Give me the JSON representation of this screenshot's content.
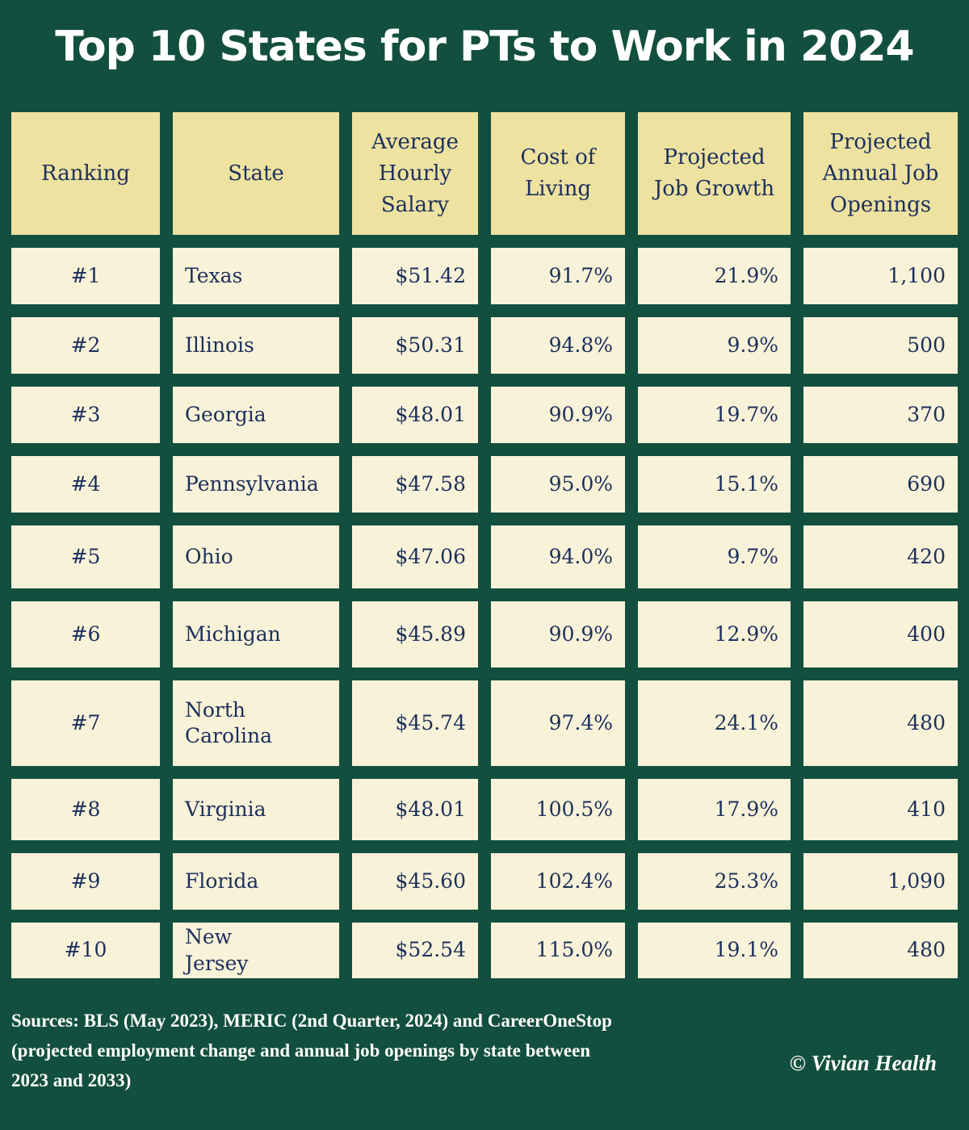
{
  "title": "Top 10 States for PTs to Work in 2024",
  "headers": [
    "Ranking",
    "State",
    "Average Hourly Salary",
    "Cost of Living",
    "Projected Job Growth",
    "Projected Annual Job Openings"
  ],
  "rows": [
    [
      "#1",
      "Texas",
      "$51.42",
      "91.7%",
      "21.9%",
      "1,100"
    ],
    [
      "#2",
      "Illinois",
      "$50.31",
      "94.8%",
      "9.9%",
      "500"
    ],
    [
      "#3",
      "Georgia",
      "$48.01",
      "90.9%",
      "19.7%",
      "370"
    ],
    [
      "#4",
      "Pennsylvania",
      "$47.58",
      "95.0%",
      "15.1%",
      "690"
    ],
    [
      "#5",
      "Ohio",
      "$47.06",
      "94.0%",
      "9.7%",
      "420"
    ],
    [
      "#6",
      "Michigan",
      "$45.89",
      "90.9%",
      "12.9%",
      "400"
    ],
    [
      "#7",
      "North Carolina",
      "$45.74",
      "97.4%",
      "24.1%",
      "480"
    ],
    [
      "#8",
      "Virginia",
      "$48.01",
      "100.5%",
      "17.9%",
      "410"
    ],
    [
      "#9",
      "Florida",
      "$45.60",
      "102.4%",
      "25.3%",
      "1,090"
    ],
    [
      "#10",
      "New Jersey",
      "$52.54",
      "115.0%",
      "19.1%",
      "480"
    ]
  ],
  "sources": "Sources: BLS (May 2023), MERIC (2nd Quarter, 2024) and CareerOneStop (projected employment change and annual job openings by state between 2023 and 2033)",
  "copyright": "© Vivian Health",
  "colors": {
    "background": "#134f3e",
    "header": "#ede2a0",
    "cell": "#f8f2d8",
    "text": "#1c2f5c"
  }
}
